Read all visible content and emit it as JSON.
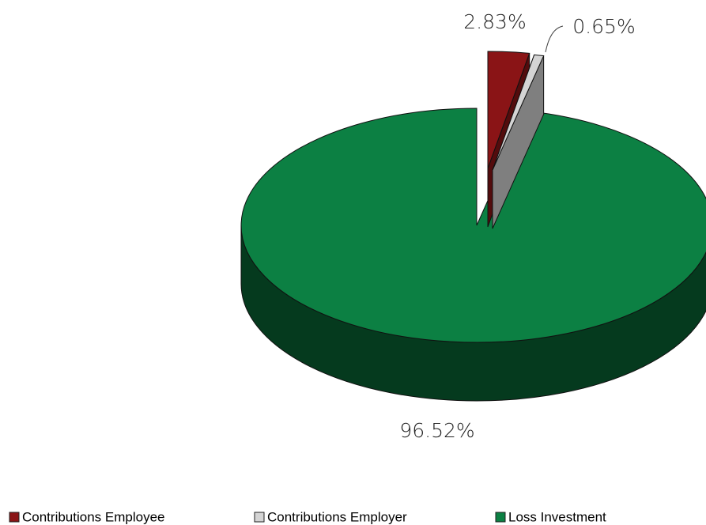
{
  "chart_data": {
    "type": "pie3d",
    "categories": [
      "Contributions Employee",
      "Contributions Employer",
      "Loss Investment"
    ],
    "values": [
      2.83,
      0.65,
      96.52
    ],
    "value_labels": [
      "2.83%",
      "0.65%",
      "96.52%"
    ],
    "colors": [
      "#8a1416",
      "#d4d4d4",
      "#0c8043"
    ],
    "legend": "bottom"
  }
}
